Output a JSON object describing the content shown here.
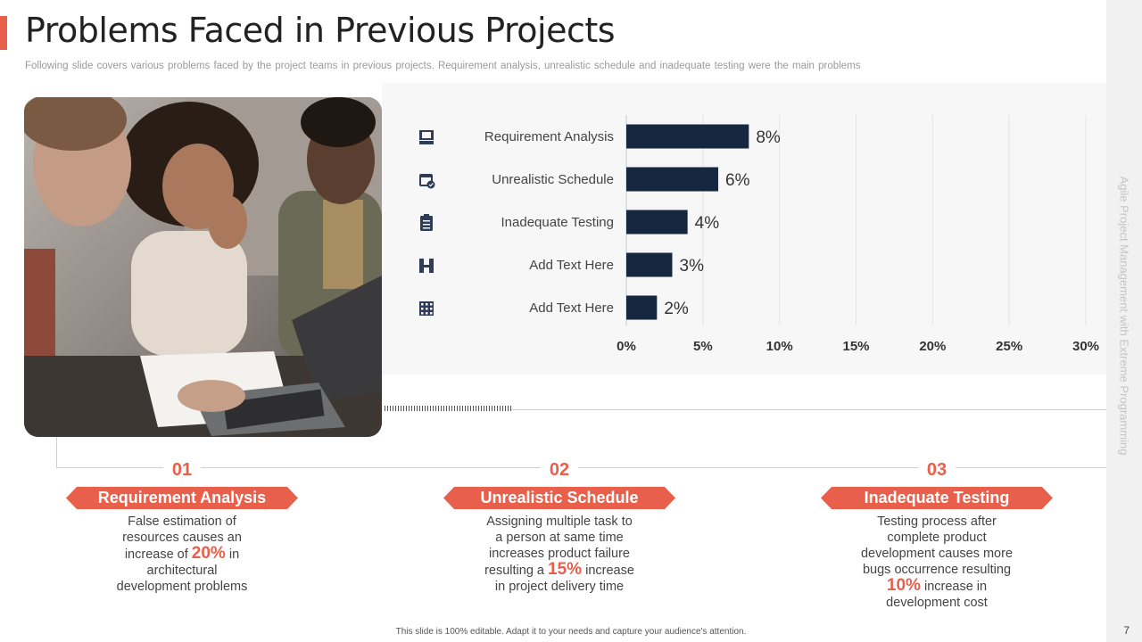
{
  "slide": {
    "title": "Problems Faced in Previous Projects",
    "subtitle": "Following slide covers various problems faced by the project teams in previous  projects. Requirement  analysis, unrealistic schedule and inadequate testing were the main problems",
    "side_text": "Agile Project Management with Extreme Programming",
    "page_number": "7",
    "footer": "This slide is 100% editable. Adapt it to your needs and capture your audience's attention."
  },
  "colors": {
    "accent": "#e8604c",
    "bar": "#16273f",
    "icon": "#2e3d55"
  },
  "chart_data": {
    "type": "bar",
    "orientation": "horizontal",
    "categories": [
      "Requirement Analysis",
      "Unrealistic Schedule",
      "Inadequate Testing",
      "Add Text Here",
      "Add Text Here"
    ],
    "values": [
      8,
      6,
      4,
      3,
      2
    ],
    "value_labels": [
      "8%",
      "6%",
      "4%",
      "3%",
      "2%"
    ],
    "category_icons": [
      "computer-icon",
      "calendar-check-icon",
      "clipboard-icon",
      "network-icon",
      "building-icon"
    ],
    "x_ticks": [
      "0%",
      "5%",
      "10%",
      "15%",
      "20%",
      "25%",
      "30%"
    ],
    "xlim": [
      0,
      30
    ],
    "x_unit": "%",
    "grid": true
  },
  "items": [
    {
      "number": "01",
      "title": "Requirement Analysis",
      "desc_before": "False estimation of resources causes an increase of",
      "highlight": "20%",
      "desc_after": "in architectural development problems"
    },
    {
      "number": "02",
      "title": "Unrealistic Schedule",
      "desc_before": "Assigning multiple task to a person at same time increases product failure resulting a",
      "highlight": "15%",
      "desc_after": "increase in project delivery time"
    },
    {
      "number": "03",
      "title": "Inadequate Testing",
      "desc_before": "Testing process after complete product development causes more bugs occurrence resulting",
      "highlight": "10%",
      "desc_after": "increase in development cost"
    }
  ]
}
